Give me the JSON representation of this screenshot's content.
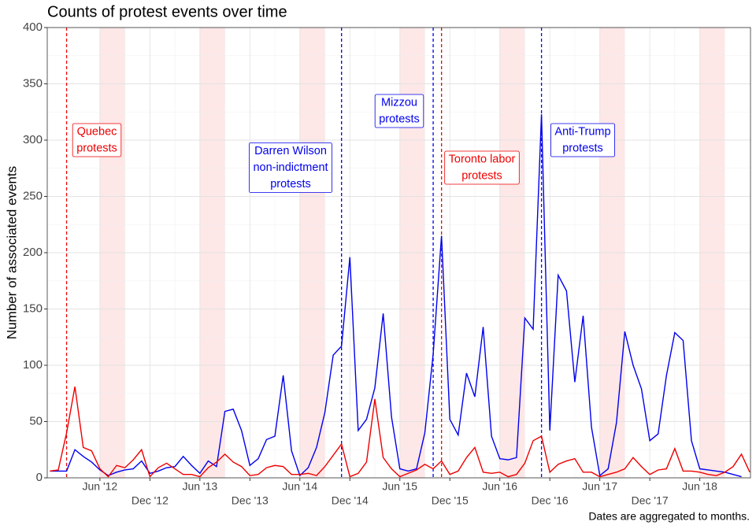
{
  "chart_data": {
    "type": "line",
    "title": "Counts of protest events over time",
    "ylabel": "Number of associated events",
    "caption": "Dates are aggregated to months.",
    "x": [
      "2011-12",
      "2012-01",
      "2012-02",
      "2012-03",
      "2012-04",
      "2012-05",
      "2012-06",
      "2012-07",
      "2012-08",
      "2012-09",
      "2012-10",
      "2012-11",
      "2012-12",
      "2013-01",
      "2013-02",
      "2013-03",
      "2013-04",
      "2013-05",
      "2013-06",
      "2013-07",
      "2013-08",
      "2013-09",
      "2013-10",
      "2013-11",
      "2013-12",
      "2014-01",
      "2014-02",
      "2014-03",
      "2014-04",
      "2014-05",
      "2014-06",
      "2014-07",
      "2014-08",
      "2014-09",
      "2014-10",
      "2014-11",
      "2014-12",
      "2015-01",
      "2015-02",
      "2015-03",
      "2015-04",
      "2015-05",
      "2015-06",
      "2015-07",
      "2015-08",
      "2015-09",
      "2015-10",
      "2015-11",
      "2015-12",
      "2016-01",
      "2016-02",
      "2016-03",
      "2016-04",
      "2016-05",
      "2016-06",
      "2016-07",
      "2016-08",
      "2016-09",
      "2016-10",
      "2016-11",
      "2016-12",
      "2017-01",
      "2017-02",
      "2017-03",
      "2017-04",
      "2017-05",
      "2017-06",
      "2017-07",
      "2017-08",
      "2017-09",
      "2017-10",
      "2017-11",
      "2017-12",
      "2018-01",
      "2018-02",
      "2018-03",
      "2018-04",
      "2018-05",
      "2018-06",
      "2018-07",
      "2018-08",
      "2018-09",
      "2018-10",
      "2018-11",
      "2018-12"
    ],
    "series": [
      {
        "color": "#0000ee",
        "values": [
          6,
          6,
          6,
          25,
          19,
          14,
          7,
          2,
          5,
          7,
          8,
          15,
          4,
          6,
          9,
          10,
          19,
          11,
          4,
          15,
          10,
          59,
          61,
          42,
          11,
          17,
          34,
          37,
          91,
          24,
          2,
          9,
          27,
          58,
          109,
          117,
          196,
          42,
          52,
          80,
          146,
          54,
          8,
          6,
          8,
          40,
          110,
          215,
          52,
          38,
          93,
          72,
          134,
          37,
          17,
          16,
          18,
          142,
          132,
          323,
          42,
          180,
          166,
          85,
          144,
          45,
          2,
          8,
          49,
          130,
          100,
          79,
          33,
          39,
          91,
          129,
          122,
          33,
          8,
          7,
          6,
          5,
          3,
          1,
          null
        ]
      },
      {
        "color": "#ee0000",
        "values": [
          6,
          7,
          40,
          81,
          27,
          24,
          8,
          1,
          11,
          9,
          16,
          25,
          1,
          9,
          13,
          8,
          3,
          3,
          1,
          9,
          14,
          21,
          14,
          10,
          2,
          3,
          9,
          11,
          10,
          3,
          3,
          4,
          2,
          10,
          20,
          30,
          1,
          4,
          14,
          70,
          18,
          8,
          1,
          4,
          7,
          12,
          8,
          15,
          3,
          6,
          18,
          27,
          5,
          4,
          5,
          1,
          3,
          13,
          33,
          37,
          5,
          12,
          15,
          17,
          5,
          5,
          1,
          3,
          5,
          8,
          18,
          10,
          3,
          7,
          8,
          26,
          6,
          6,
          5,
          3,
          2,
          5,
          10,
          21,
          5
        ]
      }
    ],
    "xlim": [
      "2011-12",
      "2018-12"
    ],
    "xticks": [
      {
        "value": "2012-06",
        "label": "Jun '12"
      },
      {
        "value": "2012-12",
        "label": "Dec '12"
      },
      {
        "value": "2013-06",
        "label": "Jun '13"
      },
      {
        "value": "2013-12",
        "label": "Dec '13"
      },
      {
        "value": "2014-06",
        "label": "Jun '14"
      },
      {
        "value": "2014-12",
        "label": "Dec '14"
      },
      {
        "value": "2015-06",
        "label": "Jun '15"
      },
      {
        "value": "2015-12",
        "label": "Dec '15"
      },
      {
        "value": "2016-06",
        "label": "Jun '16"
      },
      {
        "value": "2016-12",
        "label": "Dec '16"
      },
      {
        "value": "2017-06",
        "label": "Jun '17"
      },
      {
        "value": "2017-12",
        "label": "Dec '17"
      },
      {
        "value": "2018-06",
        "label": "Jun '18"
      }
    ],
    "ylim": [
      0,
      400
    ],
    "yticks": [
      0,
      50,
      100,
      150,
      200,
      250,
      300,
      350,
      400
    ],
    "grid": true,
    "shaded_periods": {
      "color": "#fde3e3",
      "ranges": [
        [
          "2012-06",
          "2012-09"
        ],
        [
          "2013-06",
          "2013-09"
        ],
        [
          "2014-06",
          "2014-09"
        ],
        [
          "2015-06",
          "2015-09"
        ],
        [
          "2016-06",
          "2016-09"
        ],
        [
          "2017-06",
          "2017-09"
        ],
        [
          "2018-06",
          "2018-09"
        ]
      ]
    },
    "events": [
      {
        "date": "2012-02",
        "color": "#ee0000",
        "label": [
          "Quebec",
          "protests"
        ]
      },
      {
        "date": "2014-11",
        "color": "#0000ee",
        "label": [
          "Darren Wilson",
          "non-indictment",
          "protests"
        ]
      },
      {
        "date": "2015-10",
        "color": "#0000ee",
        "label": [
          "Mizzou",
          "protests"
        ]
      },
      {
        "date": "2015-11",
        "color": "#ee0000",
        "label": [
          "Toronto labor",
          "protests"
        ]
      },
      {
        "date": "2016-11",
        "color": "#0000ee",
        "label": [
          "Anti-Trump",
          "protests"
        ]
      }
    ]
  }
}
